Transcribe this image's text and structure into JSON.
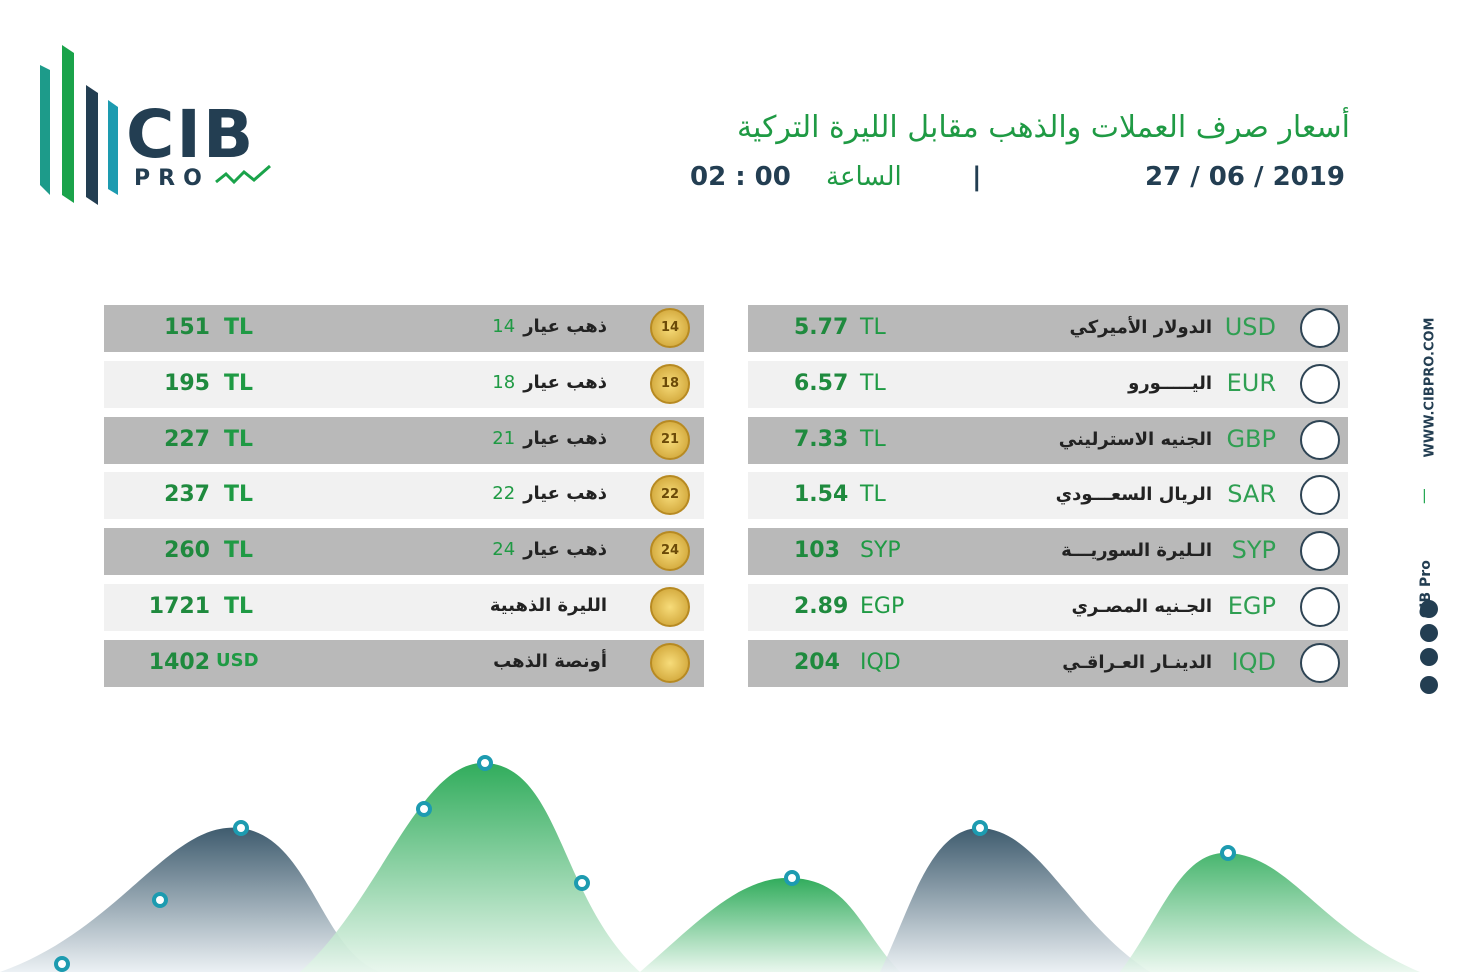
{
  "logo": {
    "name": "CIB",
    "sub": "PRO"
  },
  "header": {
    "title": "أسعار صرف العملات والذهب مقابل الليرة التركية",
    "date": "27 / 06 / 2019",
    "separator": "|",
    "time_label": "الساعة",
    "time": "02 : 00"
  },
  "currencies": [
    {
      "code": "USD",
      "name": "الدولار الأميركي",
      "value": 5.77,
      "unit": "TL"
    },
    {
      "code": "EUR",
      "name": "اليـــــورو",
      "value": 6.57,
      "unit": "TL"
    },
    {
      "code": "GBP",
      "name": "الجنيه الاسترليني",
      "value": 7.33,
      "unit": "TL"
    },
    {
      "code": "SAR",
      "name": "الريال السعـــودي",
      "value": 1.54,
      "unit": "TL"
    },
    {
      "code": "SYP",
      "name": "الـليرة السوريـــة",
      "value": 103,
      "unit": "SYP"
    },
    {
      "code": "EGP",
      "name": "الجـنيه المصـري",
      "value": 2.89,
      "unit": "EGP"
    },
    {
      "code": "IQD",
      "name": "الدينـار العـراقـي",
      "value": 204,
      "unit": "IQD"
    }
  ],
  "gold": [
    {
      "name": "ذهب عيار",
      "karat": 14,
      "value": 151,
      "unit": "TL"
    },
    {
      "name": "ذهب عيار",
      "karat": 18,
      "value": 195,
      "unit": "TL"
    },
    {
      "name": "ذهب عيار",
      "karat": 21,
      "value": 227,
      "unit": "TL"
    },
    {
      "name": "ذهب عيار",
      "karat": 22,
      "value": 237,
      "unit": "TL"
    },
    {
      "name": "ذهب عيار",
      "karat": 24,
      "value": 260,
      "unit": "TL"
    },
    {
      "name": "الليرة الذهبية",
      "value": 1721,
      "unit": "TL"
    },
    {
      "name": "أونصة الذهب",
      "value": 1402,
      "unit": "USD"
    }
  ],
  "sidebar": {
    "website": "WWW.CIBPRO.COM",
    "separator": "|",
    "brand": "CIB Pro"
  }
}
